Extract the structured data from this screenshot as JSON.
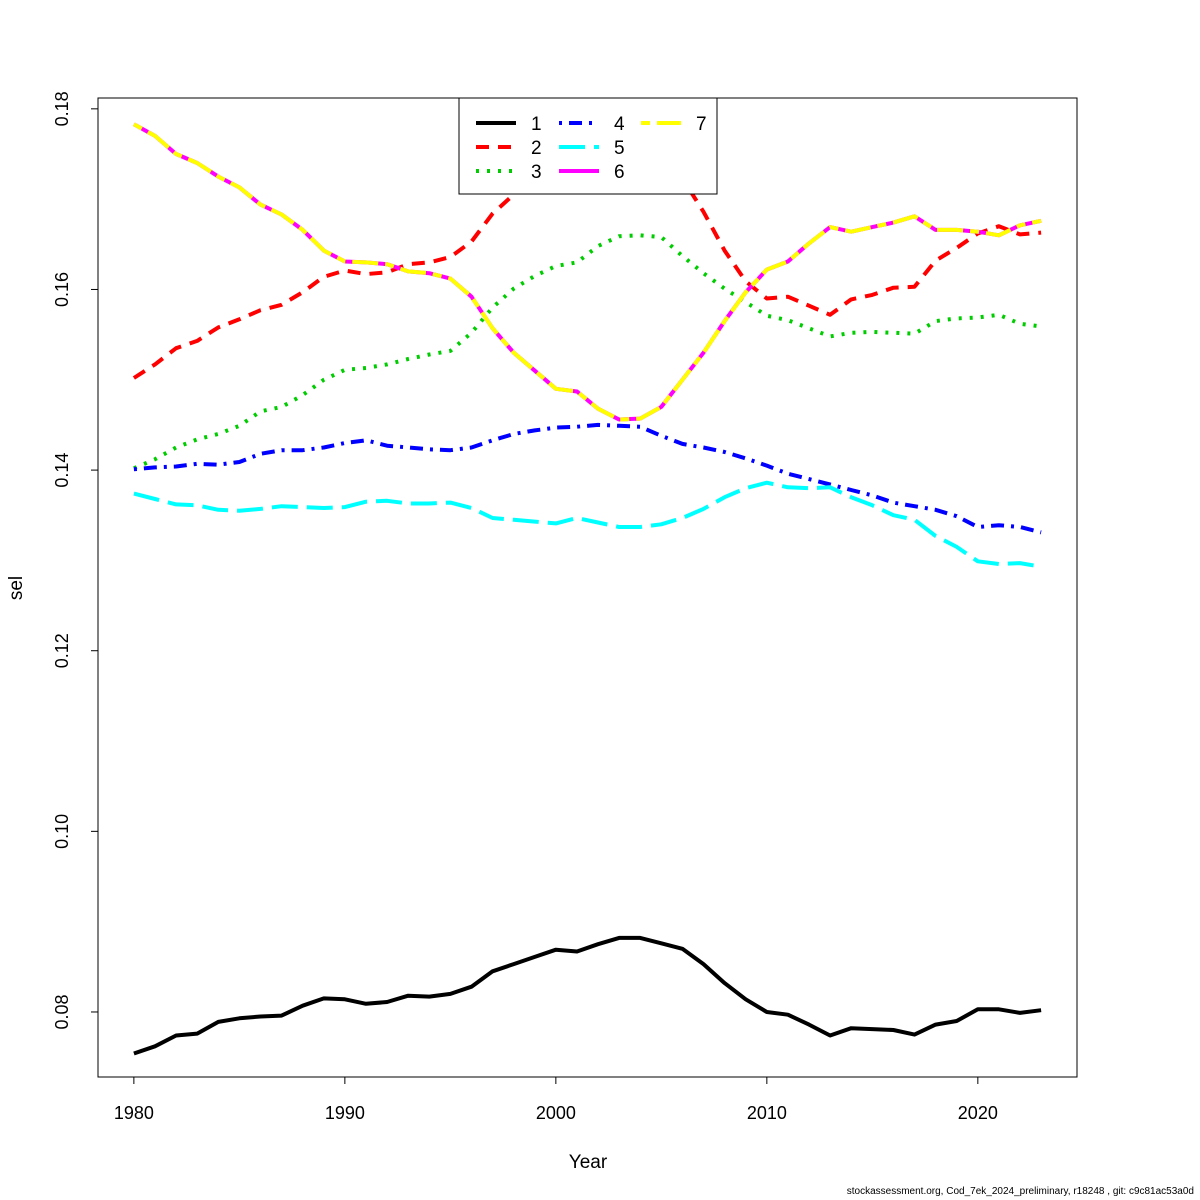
{
  "chart_data": {
    "type": "line",
    "xlabel": "Year",
    "ylabel": "sel",
    "xlim": [
      1978.3,
      2024.7
    ],
    "ylim": [
      0.0728,
      0.1812
    ],
    "x_ticks": [
      1980,
      1990,
      2000,
      2010,
      2020
    ],
    "y_ticks": [
      0.08,
      0.1,
      0.12,
      0.14,
      0.16,
      0.18
    ],
    "y_tick_labels": [
      "0.08",
      "0.10",
      "0.12",
      "0.14",
      "0.16",
      "0.18"
    ],
    "grid": false,
    "legend_position": "top-center",
    "x": [
      1980,
      1981,
      1982,
      1983,
      1984,
      1985,
      1986,
      1987,
      1988,
      1989,
      1990,
      1991,
      1992,
      1993,
      1994,
      1995,
      1996,
      1997,
      1998,
      1999,
      2000,
      2001,
      2002,
      2003,
      2004,
      2005,
      2006,
      2007,
      2008,
      2009,
      2010,
      2011,
      2012,
      2013,
      2014,
      2015,
      2016,
      2017,
      2018,
      2019,
      2020,
      2021,
      2022,
      2023
    ],
    "series": [
      {
        "name": "1",
        "color": "#000000",
        "dash": "solid",
        "values": [
          0.0754,
          0.0762,
          0.0774,
          0.0776,
          0.0789,
          0.0793,
          0.0795,
          0.0796,
          0.0807,
          0.0815,
          0.0814,
          0.0809,
          0.0811,
          0.0818,
          0.0817,
          0.082,
          0.0828,
          0.0845,
          0.0853,
          0.0861,
          0.0869,
          0.0867,
          0.0875,
          0.0882,
          0.0882,
          0.0876,
          0.087,
          0.0853,
          0.0832,
          0.0814,
          0.08,
          0.0797,
          0.0786,
          0.0774,
          0.0782,
          0.0781,
          0.078,
          0.0775,
          0.0786,
          0.079,
          0.0803,
          0.0803,
          0.0799,
          0.0802
        ]
      },
      {
        "name": "2",
        "color": "#ff0000",
        "dash": "dashed",
        "values": [
          0.1502,
          0.1517,
          0.1535,
          0.1543,
          0.1558,
          0.1567,
          0.1577,
          0.1583,
          0.1597,
          0.1614,
          0.1621,
          0.1617,
          0.1619,
          0.1628,
          0.163,
          0.1636,
          0.1653,
          0.1684,
          0.1705,
          0.1722,
          0.1734,
          0.174,
          0.1748,
          0.1752,
          0.1755,
          0.174,
          0.1723,
          0.1686,
          0.1643,
          0.1609,
          0.159,
          0.1592,
          0.1582,
          0.1572,
          0.1589,
          0.1594,
          0.1602,
          0.1603,
          0.1632,
          0.1646,
          0.1662,
          0.167,
          0.1661,
          0.1663
        ]
      },
      {
        "name": "3",
        "color": "#00cd00",
        "dash": "dotted",
        "values": [
          0.1402,
          0.1412,
          0.1425,
          0.1434,
          0.144,
          0.1449,
          0.1465,
          0.147,
          0.1483,
          0.15,
          0.1511,
          0.1513,
          0.1517,
          0.1523,
          0.1528,
          0.1532,
          0.1552,
          0.158,
          0.1601,
          0.1615,
          0.1626,
          0.163,
          0.1648,
          0.1659,
          0.166,
          0.1658,
          0.1637,
          0.1618,
          0.1601,
          0.1586,
          0.1571,
          0.1566,
          0.1557,
          0.1548,
          0.1552,
          0.1553,
          0.1552,
          0.1551,
          0.1565,
          0.1568,
          0.1569,
          0.1572,
          0.1562,
          0.1559
        ]
      },
      {
        "name": "4",
        "color": "#0000ff",
        "dash": "dotdash",
        "values": [
          0.1401,
          0.1403,
          0.1404,
          0.1407,
          0.1406,
          0.1409,
          0.1418,
          0.1422,
          0.1422,
          0.1425,
          0.143,
          0.1433,
          0.1427,
          0.1425,
          0.1423,
          0.1422,
          0.1425,
          0.1433,
          0.144,
          0.1444,
          0.1447,
          0.1448,
          0.145,
          0.1449,
          0.1448,
          0.1438,
          0.1429,
          0.1425,
          0.142,
          0.1413,
          0.1405,
          0.1396,
          0.139,
          0.1384,
          0.1378,
          0.1372,
          0.1364,
          0.136,
          0.1356,
          0.1349,
          0.1337,
          0.1339,
          0.1337,
          0.1331
        ]
      },
      {
        "name": "5",
        "color": "#00ffff",
        "dash": "longdash",
        "values": [
          0.1374,
          0.1368,
          0.1362,
          0.1361,
          0.1356,
          0.1355,
          0.1357,
          0.136,
          0.1359,
          0.1358,
          0.1359,
          0.1365,
          0.1366,
          0.1363,
          0.1363,
          0.1364,
          0.1358,
          0.1347,
          0.1345,
          0.1343,
          0.1341,
          0.1347,
          0.1342,
          0.1337,
          0.1337,
          0.134,
          0.1347,
          0.1357,
          0.137,
          0.138,
          0.1386,
          0.1381,
          0.138,
          0.1381,
          0.137,
          0.1361,
          0.135,
          0.1345,
          0.1327,
          0.1315,
          0.1299,
          0.1296,
          0.1297,
          0.1293
        ]
      },
      {
        "name": "6",
        "color": "#ff00ff",
        "dash": "solid",
        "values": [
          0.1783,
          0.177,
          0.175,
          0.174,
          0.1725,
          0.1713,
          0.1694,
          0.1683,
          0.1666,
          0.1643,
          0.1631,
          0.163,
          0.1628,
          0.162,
          0.1618,
          0.1612,
          0.1592,
          0.1557,
          0.153,
          0.151,
          0.149,
          0.1487,
          0.1468,
          0.1456,
          0.1457,
          0.147,
          0.15,
          0.153,
          0.1565,
          0.1597,
          0.1622,
          0.1631,
          0.1651,
          0.1669,
          0.1664,
          0.1669,
          0.1674,
          0.1681,
          0.1666,
          0.1666,
          0.1664,
          0.166,
          0.1671,
          0.1676
        ]
      },
      {
        "name": "7",
        "color": "#ffff00",
        "dash": "twodash",
        "values": [
          0.1783,
          0.177,
          0.175,
          0.174,
          0.1725,
          0.1713,
          0.1694,
          0.1683,
          0.1666,
          0.1643,
          0.1631,
          0.163,
          0.1628,
          0.162,
          0.1618,
          0.1612,
          0.1592,
          0.1557,
          0.153,
          0.151,
          0.149,
          0.1487,
          0.1468,
          0.1456,
          0.1457,
          0.147,
          0.15,
          0.153,
          0.1565,
          0.1597,
          0.1622,
          0.1631,
          0.1651,
          0.1669,
          0.1664,
          0.1669,
          0.1674,
          0.1681,
          0.1666,
          0.1666,
          0.1664,
          0.166,
          0.1671,
          0.1676
        ]
      }
    ]
  },
  "footer": "stockassessment.org, Cod_7ek_2024_preliminary, r18248 , git: c9c81ac53a0d"
}
